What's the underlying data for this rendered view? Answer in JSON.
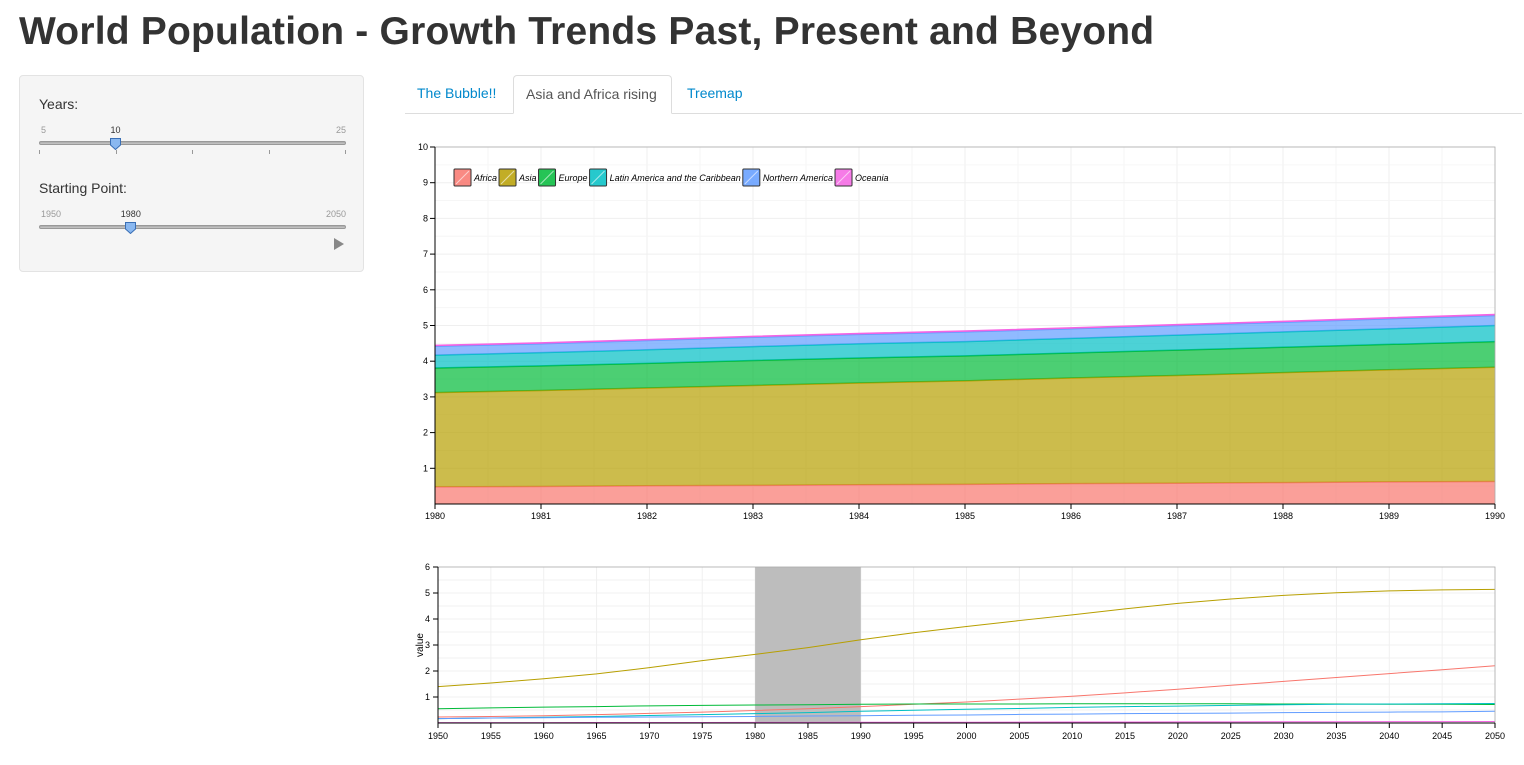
{
  "page_title": "World Population - Growth Trends Past, Present and Beyond",
  "sidebar": {
    "years_label": "Years:",
    "years": {
      "min": "5",
      "max": "25",
      "value": "10",
      "fraction": 0.25
    },
    "start_label": "Starting Point:",
    "start": {
      "min": "1950",
      "max": "2050",
      "value": "1980",
      "fraction": 0.3
    }
  },
  "tabs": [
    {
      "label": "The Bubble!!",
      "active": false
    },
    {
      "label": "Asia and Africa rising",
      "active": true
    },
    {
      "label": "Treemap",
      "active": false
    }
  ],
  "chart_data": [
    {
      "type": "area",
      "stacked": true,
      "x": [
        1980,
        1981,
        1982,
        1983,
        1984,
        1985,
        1986,
        1987,
        1988,
        1989,
        1990
      ],
      "xlim": [
        1980,
        1990
      ],
      "ylim": [
        0,
        10
      ],
      "yticks": [
        1,
        2,
        3,
        4,
        5,
        6,
        7,
        8,
        9,
        10
      ],
      "legend_position": "top-left",
      "grid": true,
      "series": [
        {
          "name": "Africa",
          "color": "#F8766D",
          "values": [
            0.48,
            0.49,
            0.51,
            0.52,
            0.54,
            0.55,
            0.57,
            0.58,
            0.6,
            0.62,
            0.63
          ]
        },
        {
          "name": "Asia",
          "color": "#B79F00",
          "values": [
            2.64,
            2.69,
            2.74,
            2.8,
            2.85,
            2.9,
            2.96,
            3.02,
            3.08,
            3.14,
            3.2
          ]
        },
        {
          "name": "Europe",
          "color": "#00BA38",
          "values": [
            0.69,
            0.69,
            0.69,
            0.7,
            0.7,
            0.7,
            0.7,
            0.71,
            0.71,
            0.71,
            0.72
          ]
        },
        {
          "name": "Latin America and the Caribbean",
          "color": "#00BFC4",
          "values": [
            0.36,
            0.37,
            0.38,
            0.39,
            0.4,
            0.4,
            0.41,
            0.42,
            0.43,
            0.44,
            0.45
          ]
        },
        {
          "name": "Northern America",
          "color": "#619CFF",
          "values": [
            0.25,
            0.25,
            0.26,
            0.26,
            0.26,
            0.27,
            0.27,
            0.27,
            0.27,
            0.28,
            0.28
          ]
        },
        {
          "name": "Oceania",
          "color": "#F564E3",
          "values": [
            0.023,
            0.023,
            0.024,
            0.024,
            0.025,
            0.025,
            0.025,
            0.026,
            0.026,
            0.027,
            0.027
          ]
        }
      ]
    },
    {
      "type": "line",
      "ylabel": "value",
      "x": [
        1950,
        1955,
        1960,
        1965,
        1970,
        1975,
        1980,
        1985,
        1990,
        1995,
        2000,
        2005,
        2010,
        2015,
        2020,
        2025,
        2030,
        2035,
        2040,
        2045,
        2050
      ],
      "xlim": [
        1950,
        2050
      ],
      "ylim": [
        0,
        6
      ],
      "yticks": [
        1,
        2,
        3,
        4,
        5,
        6
      ],
      "brush": [
        1980,
        1990
      ],
      "grid": true,
      "series": [
        {
          "color": "#F8766D",
          "values": [
            0.23,
            0.25,
            0.28,
            0.32,
            0.37,
            0.42,
            0.48,
            0.55,
            0.63,
            0.72,
            0.81,
            0.92,
            1.03,
            1.16,
            1.3,
            1.45,
            1.6,
            1.75,
            1.9,
            2.05,
            2.2
          ]
        },
        {
          "color": "#B79F00",
          "values": [
            1.4,
            1.54,
            1.7,
            1.89,
            2.13,
            2.4,
            2.64,
            2.9,
            3.2,
            3.47,
            3.71,
            3.94,
            4.16,
            4.39,
            4.6,
            4.77,
            4.91,
            5.01,
            5.08,
            5.12,
            5.14
          ]
        },
        {
          "color": "#00BA38",
          "values": [
            0.55,
            0.58,
            0.61,
            0.63,
            0.66,
            0.68,
            0.69,
            0.7,
            0.72,
            0.73,
            0.73,
            0.73,
            0.74,
            0.74,
            0.74,
            0.74,
            0.73,
            0.73,
            0.72,
            0.72,
            0.71
          ]
        },
        {
          "color": "#00BFC4",
          "values": [
            0.17,
            0.19,
            0.22,
            0.25,
            0.29,
            0.32,
            0.36,
            0.4,
            0.45,
            0.49,
            0.53,
            0.56,
            0.6,
            0.63,
            0.65,
            0.68,
            0.7,
            0.72,
            0.73,
            0.74,
            0.75
          ]
        },
        {
          "color": "#619CFF",
          "values": [
            0.17,
            0.19,
            0.2,
            0.22,
            0.23,
            0.24,
            0.25,
            0.27,
            0.28,
            0.3,
            0.31,
            0.33,
            0.34,
            0.36,
            0.37,
            0.38,
            0.4,
            0.41,
            0.42,
            0.43,
            0.45
          ]
        },
        {
          "color": "#F564E3",
          "values": [
            0.013,
            0.014,
            0.016,
            0.018,
            0.02,
            0.021,
            0.023,
            0.025,
            0.027,
            0.029,
            0.031,
            0.034,
            0.037,
            0.039,
            0.042,
            0.045,
            0.047,
            0.05,
            0.052,
            0.055,
            0.057
          ]
        }
      ]
    }
  ]
}
